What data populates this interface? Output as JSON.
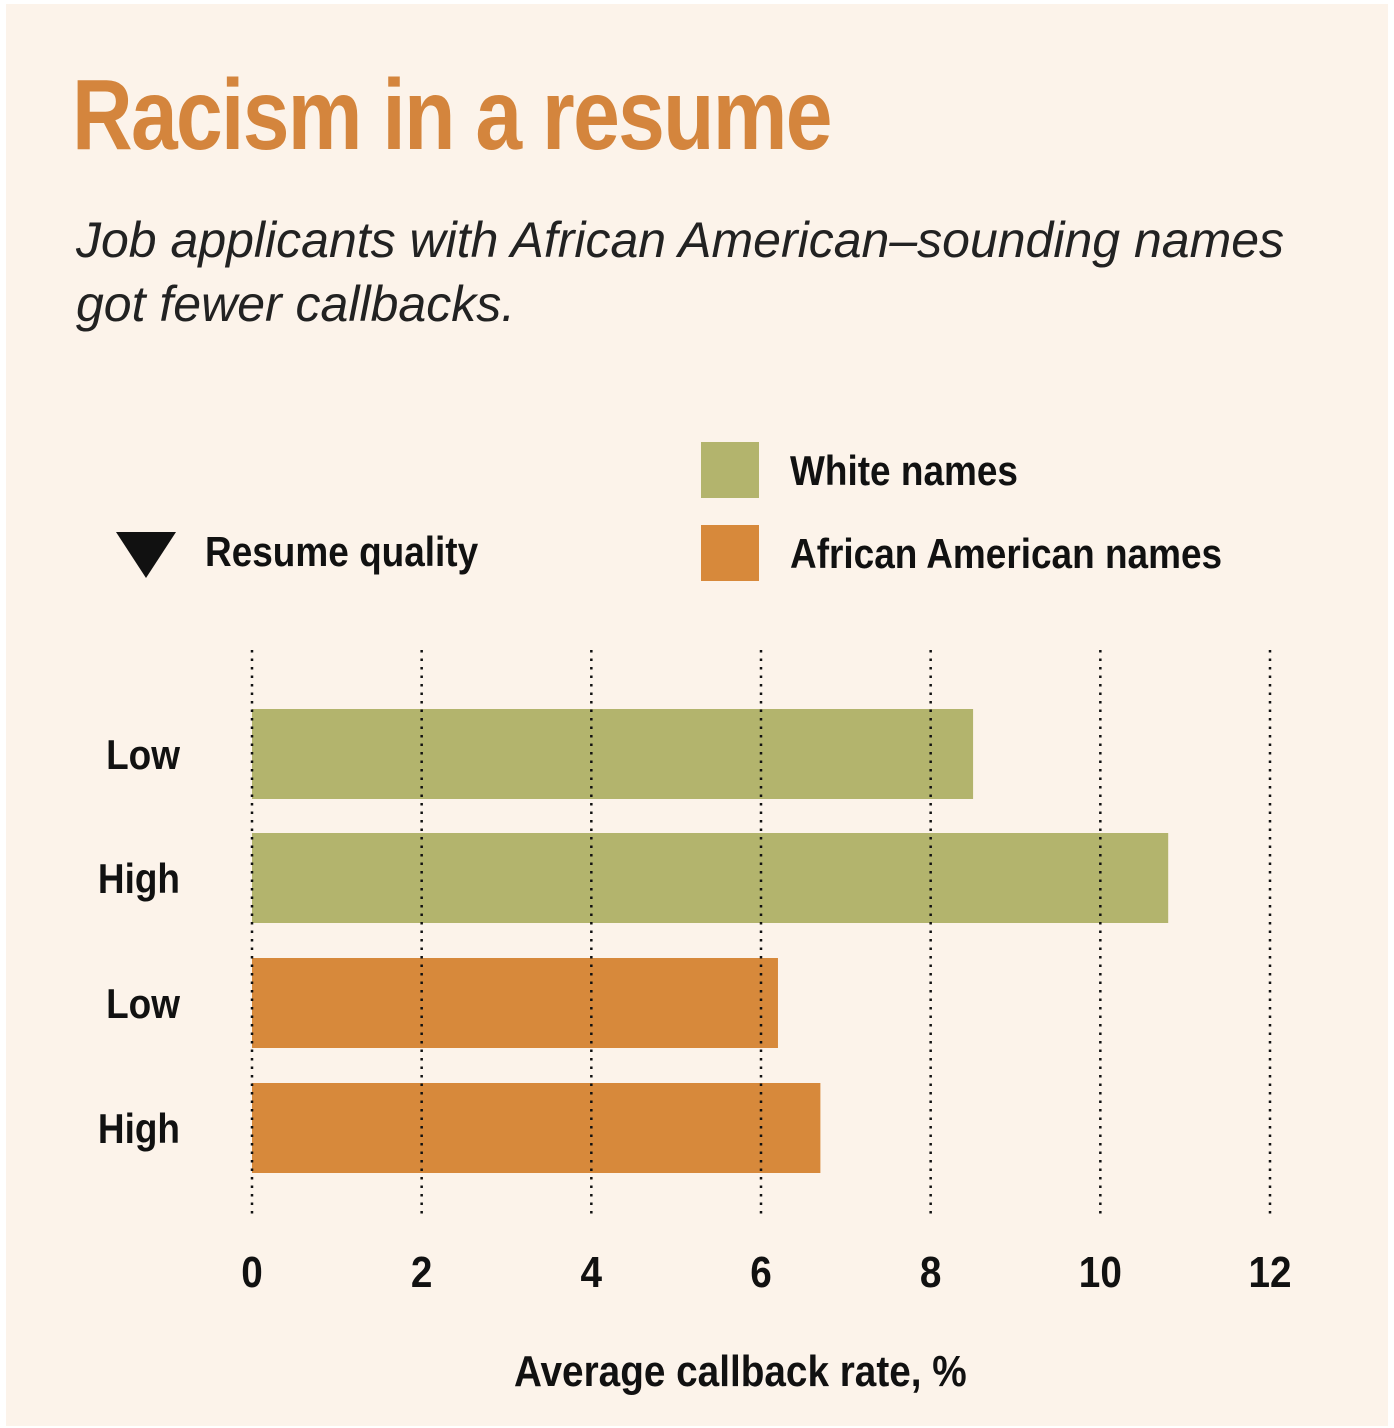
{
  "title": "Racism in a resume",
  "subtitle": "Job applicants with African American–sounding names got fewer callbacks.",
  "legend": {
    "items": [
      {
        "label": "White names",
        "color": "#b3b46d"
      },
      {
        "label": "African American names",
        "color": "#d7893b"
      }
    ]
  },
  "sort_indicator": {
    "label": "Resume quality",
    "icon": "down-triangle-icon"
  },
  "chart_data": {
    "type": "bar",
    "orientation": "horizontal",
    "categories": [
      "Low",
      "High",
      "Low",
      "High"
    ],
    "series": [
      {
        "name": "White names",
        "color": "#b3b46d",
        "values": [
          8.5,
          10.8,
          null,
          null
        ]
      },
      {
        "name": "African American names",
        "color": "#d7893b",
        "values": [
          null,
          null,
          6.2,
          6.7
        ]
      }
    ],
    "xlabel": "Average callback rate, %",
    "xlim": [
      0,
      12
    ],
    "xticks": [
      "0",
      "2",
      "4",
      "6",
      "8",
      "10",
      "12"
    ],
    "grid": "vertical-dotted",
    "legend_position": "top-right"
  }
}
